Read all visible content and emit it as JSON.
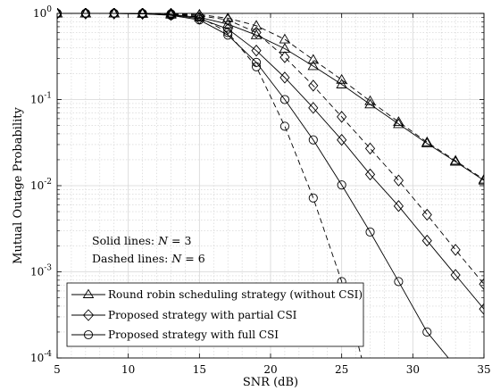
{
  "chart_data": {
    "type": "line",
    "title": "",
    "xlabel": "SNR (dB)",
    "ylabel": "Mutual Outage Probability",
    "xlim": [
      5,
      35
    ],
    "ylim": [
      0.0001,
      1
    ],
    "yscale": "log",
    "xticks": [
      "5",
      "10",
      "15",
      "20",
      "25",
      "30",
      "35"
    ],
    "yticks": [
      {
        "base": "10",
        "exp": "0",
        "value": 1
      },
      {
        "base": "10",
        "exp": "-1",
        "value": 0.1
      },
      {
        "base": "10",
        "exp": "-2",
        "value": 0.01
      },
      {
        "base": "10",
        "exp": "-3",
        "value": 0.001
      },
      {
        "base": "10",
        "exp": "-4",
        "value": 0.0001
      }
    ],
    "grid": true,
    "legend_position": "bottom-left",
    "legend": [
      {
        "label": "Round robin scheduling strategy (without CSI)",
        "marker": "triangle"
      },
      {
        "label": "Proposed strategy with partial CSI",
        "marker": "diamond"
      },
      {
        "label": "Proposed strategy with full CSI",
        "marker": "circle"
      }
    ],
    "annotations": [
      "Solid lines: N = 3",
      "Dashed lines: N = 6"
    ],
    "series": [
      {
        "strategy": "Round robin scheduling strategy (without CSI)",
        "N": 3,
        "line": "solid",
        "marker": "triangle",
        "x": [
          5,
          7,
          9,
          11,
          13,
          15,
          17,
          19,
          21,
          23,
          25,
          27,
          29,
          31,
          33,
          35
        ],
        "y": [
          1.0,
          1.0,
          1.0,
          0.99,
          0.97,
          0.9,
          0.75,
          0.56,
          0.39,
          0.245,
          0.15,
          0.088,
          0.052,
          0.031,
          0.019,
          0.0115
        ]
      },
      {
        "strategy": "Round robin scheduling strategy (without CSI)",
        "N": 6,
        "line": "dashed",
        "marker": "triangle",
        "x": [
          5,
          7,
          9,
          11,
          13,
          15,
          17,
          19,
          21,
          23,
          25,
          27,
          29,
          31,
          33,
          35
        ],
        "y": [
          1.0,
          1.0,
          1.0,
          1.0,
          1.0,
          0.97,
          0.88,
          0.72,
          0.5,
          0.29,
          0.17,
          0.096,
          0.055,
          0.032,
          0.0195,
          0.0118
        ]
      },
      {
        "strategy": "Proposed strategy with partial CSI",
        "N": 3,
        "line": "solid",
        "marker": "diamond",
        "x": [
          5,
          7,
          9,
          11,
          13,
          15,
          17,
          19,
          21,
          23,
          25,
          27,
          29,
          31,
          33,
          35
        ],
        "y": [
          1.0,
          1.0,
          1.0,
          0.99,
          0.96,
          0.87,
          0.66,
          0.37,
          0.18,
          0.08,
          0.034,
          0.0135,
          0.0058,
          0.0023,
          0.00092,
          0.00037
        ]
      },
      {
        "strategy": "Proposed strategy with partial CSI",
        "N": 6,
        "line": "dashed",
        "marker": "diamond",
        "x": [
          5,
          7,
          9,
          11,
          13,
          15,
          17,
          19,
          21,
          23,
          25,
          27,
          29,
          31,
          33,
          35
        ],
        "y": [
          1.0,
          1.0,
          1.0,
          1.0,
          0.99,
          0.94,
          0.84,
          0.6,
          0.31,
          0.145,
          0.063,
          0.027,
          0.0115,
          0.0046,
          0.0018,
          0.00072
        ]
      },
      {
        "strategy": "Proposed strategy with full CSI",
        "N": 3,
        "line": "solid",
        "marker": "circle",
        "x": [
          5,
          7,
          9,
          11,
          13,
          15,
          17,
          19,
          21,
          23,
          25,
          27,
          29,
          31,
          32.5
        ],
        "y": [
          1.0,
          1.0,
          1.0,
          0.99,
          0.95,
          0.84,
          0.56,
          0.27,
          0.1,
          0.034,
          0.0102,
          0.0029,
          0.00077,
          0.0002,
          0.0001
        ]
      },
      {
        "strategy": "Proposed strategy with full CSI",
        "N": 6,
        "line": "dashed",
        "marker": "circle",
        "x": [
          5,
          7,
          9,
          11,
          13,
          15,
          17,
          19,
          21,
          23,
          25,
          26.4
        ],
        "y": [
          1.0,
          1.0,
          1.0,
          1.0,
          0.99,
          0.91,
          0.6,
          0.24,
          0.049,
          0.0072,
          0.00077,
          0.0001
        ]
      }
    ]
  }
}
